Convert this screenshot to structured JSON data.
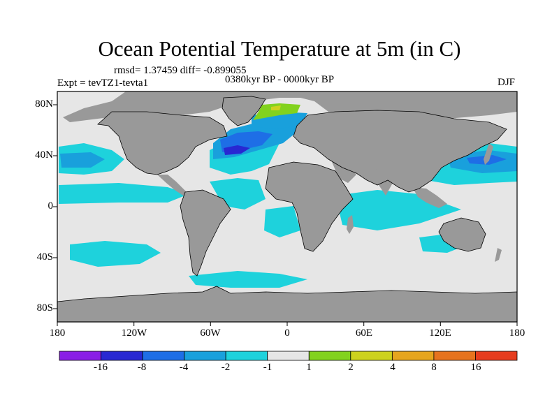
{
  "title": "Ocean Potential Temperature at 5m (in C)",
  "stats": "rmsd= 1.37459 diff= -0.899055",
  "period": "0380kyr BP - 0000kyr BP",
  "experiment": "Expt = tevTZ1-tevta1",
  "season": "DJF",
  "lat_labels": [
    "80N",
    "40N",
    "0",
    "40S",
    "80S"
  ],
  "lon_labels": [
    "180",
    "120W",
    "60W",
    "0",
    "60E",
    "120E",
    "180"
  ],
  "colorbar": {
    "labels": [
      "-16",
      "-8",
      "-4",
      "-2",
      "-1",
      "1",
      "2",
      "4",
      "8",
      "16"
    ],
    "colors": [
      "#8a1ee6",
      "#2828d2",
      "#1e6ee6",
      "#19a0dc",
      "#1ed2dc",
      "#e6e6e6",
      "#82d21e",
      "#cdd21e",
      "#e6a51e",
      "#e6731e",
      "#e63c1e"
    ]
  },
  "map_colors": {
    "land": "#999999",
    "ocean": "#e6e6e6"
  }
}
